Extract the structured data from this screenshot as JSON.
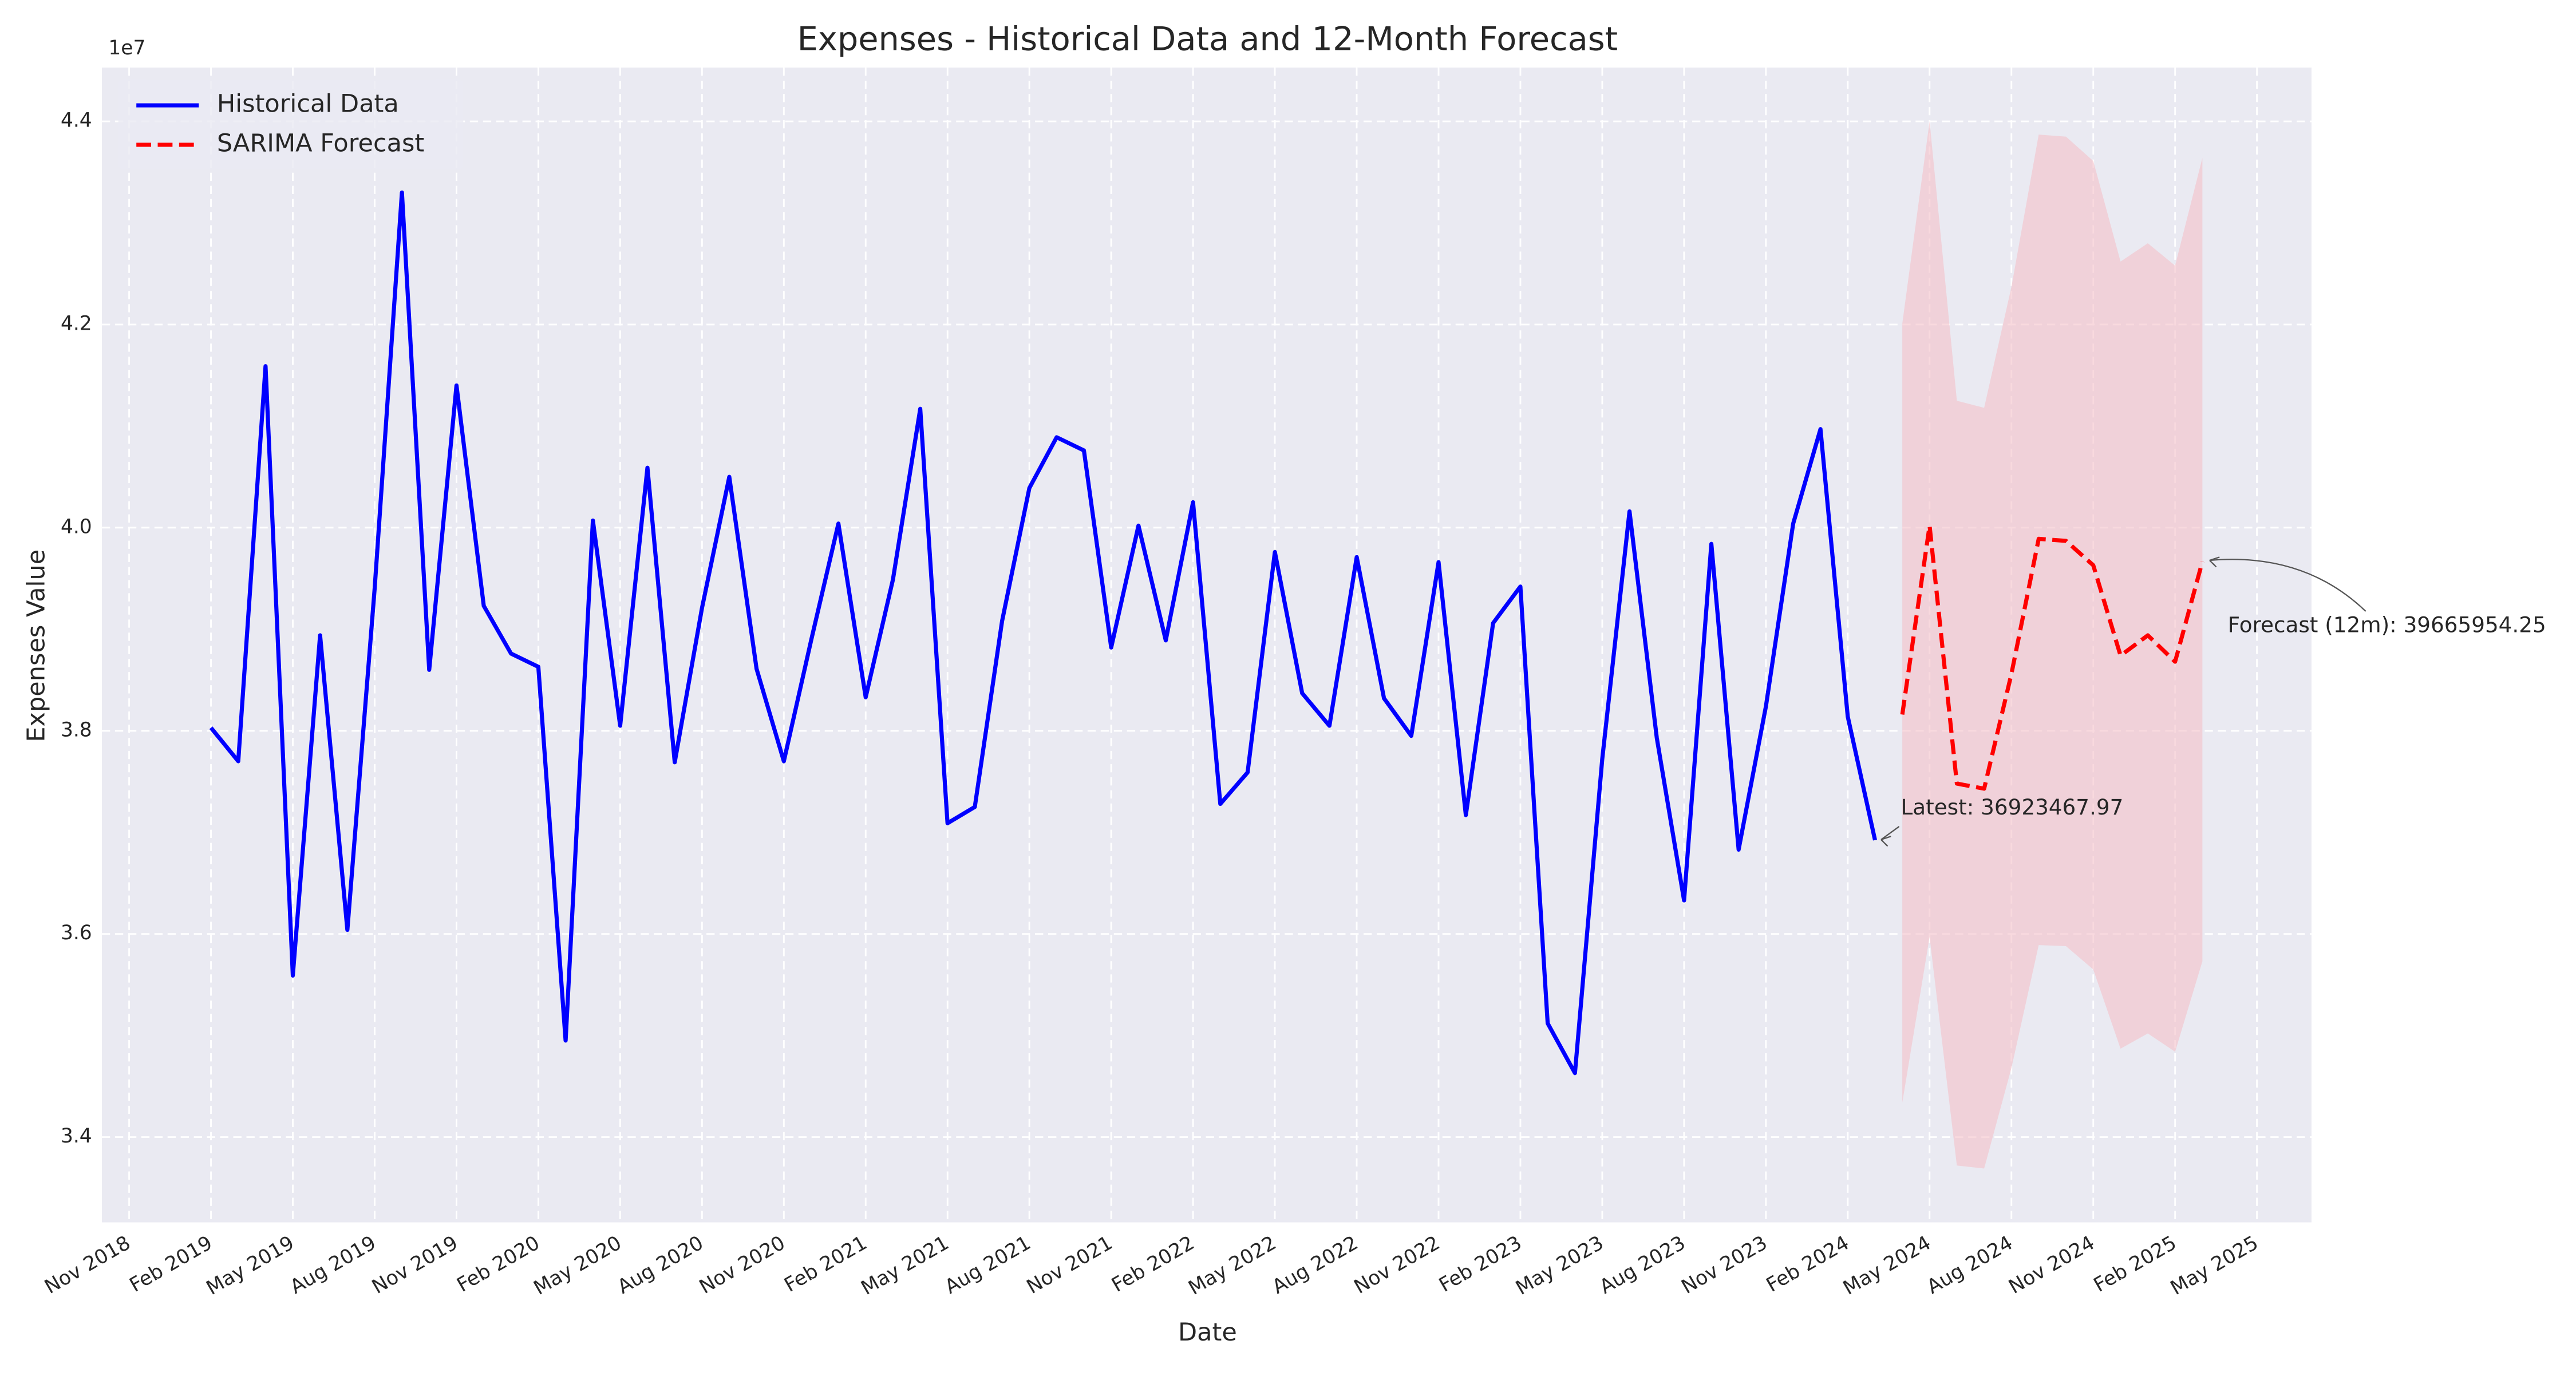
{
  "chart_data": {
    "type": "line",
    "title": "Expenses - Historical Data and 12-Month Forecast",
    "x_label": "Date",
    "y_label": "Expenses Value",
    "y_offset_label": "1e7",
    "grid": true,
    "legend": "upper left",
    "xlim": [
      "2018-10",
      "2025-07"
    ],
    "xticks": [
      {
        "value": "2018-11",
        "label": "Nov 2018"
      },
      {
        "value": "2019-02",
        "label": "Feb 2019"
      },
      {
        "value": "2019-05",
        "label": "May 2019"
      },
      {
        "value": "2019-08",
        "label": "Aug 2019"
      },
      {
        "value": "2019-11",
        "label": "Nov 2019"
      },
      {
        "value": "2020-02",
        "label": "Feb 2020"
      },
      {
        "value": "2020-05",
        "label": "May 2020"
      },
      {
        "value": "2020-08",
        "label": "Aug 2020"
      },
      {
        "value": "2020-11",
        "label": "Nov 2020"
      },
      {
        "value": "2021-02",
        "label": "Feb 2021"
      },
      {
        "value": "2021-05",
        "label": "May 2021"
      },
      {
        "value": "2021-08",
        "label": "Aug 2021"
      },
      {
        "value": "2021-11",
        "label": "Nov 2021"
      },
      {
        "value": "2022-02",
        "label": "Feb 2022"
      },
      {
        "value": "2022-05",
        "label": "May 2022"
      },
      {
        "value": "2022-08",
        "label": "Aug 2022"
      },
      {
        "value": "2022-11",
        "label": "Nov 2022"
      },
      {
        "value": "2023-02",
        "label": "Feb 2023"
      },
      {
        "value": "2023-05",
        "label": "May 2023"
      },
      {
        "value": "2023-08",
        "label": "Aug 2023"
      },
      {
        "value": "2023-11",
        "label": "Nov 2023"
      },
      {
        "value": "2024-02",
        "label": "Feb 2024"
      },
      {
        "value": "2024-05",
        "label": "May 2024"
      },
      {
        "value": "2024-08",
        "label": "Aug 2024"
      },
      {
        "value": "2024-11",
        "label": "Nov 2024"
      },
      {
        "value": "2025-02",
        "label": "Feb 2025"
      },
      {
        "value": "2025-05",
        "label": "May 2025"
      }
    ],
    "ylim": [
      33160000,
      44530000
    ],
    "yticks": [
      {
        "value": 34000000,
        "label": "3.4"
      },
      {
        "value": 36000000,
        "label": "3.6"
      },
      {
        "value": 38000000,
        "label": "3.8"
      },
      {
        "value": 40000000,
        "label": "4.0"
      },
      {
        "value": 42000000,
        "label": "4.2"
      },
      {
        "value": 44000000,
        "label": "4.4"
      }
    ],
    "series": [
      {
        "name": "Historical Data",
        "color": "#0000ff",
        "linestyle": "solid",
        "x": [
          "2019-02",
          "2019-03",
          "2019-04",
          "2019-05",
          "2019-06",
          "2019-07",
          "2019-08",
          "2019-09",
          "2019-10",
          "2019-11",
          "2019-12",
          "2020-01",
          "2020-02",
          "2020-03",
          "2020-04",
          "2020-05",
          "2020-06",
          "2020-07",
          "2020-08",
          "2020-09",
          "2020-10",
          "2020-11",
          "2020-12",
          "2021-01",
          "2021-02",
          "2021-03",
          "2021-04",
          "2021-05",
          "2021-06",
          "2021-07",
          "2021-08",
          "2021-09",
          "2021-10",
          "2021-11",
          "2021-12",
          "2022-01",
          "2022-02",
          "2022-03",
          "2022-04",
          "2022-05",
          "2022-06",
          "2022-07",
          "2022-08",
          "2022-09",
          "2022-10",
          "2022-11",
          "2022-12",
          "2023-01",
          "2023-02",
          "2023-03",
          "2023-04",
          "2023-05",
          "2023-06",
          "2023-07",
          "2023-08",
          "2023-09",
          "2023-10",
          "2023-11",
          "2023-12",
          "2024-01",
          "2024-02",
          "2024-03"
        ],
        "values": [
          38030000,
          37700000,
          41590000,
          35590000,
          38940000,
          36040000,
          39400000,
          43300000,
          38600000,
          41400000,
          39230000,
          38760000,
          38630000,
          34950000,
          40070000,
          38050000,
          40590000,
          37690000,
          39210000,
          40500000,
          38610000,
          37700000,
          38890000,
          40040000,
          38330000,
          39490000,
          41170000,
          37090000,
          37250000,
          39080000,
          40390000,
          40890000,
          40760000,
          38820000,
          40020000,
          38890000,
          40250000,
          37280000,
          37590000,
          39760000,
          38370000,
          38050000,
          39710000,
          38320000,
          37950000,
          39660000,
          37170000,
          39060000,
          39420000,
          35120000,
          34630000,
          37720000,
          40160000,
          37930000,
          36330000,
          39840000,
          36830000,
          38240000,
          40040000,
          40970000,
          38140000,
          36923467.97
        ]
      },
      {
        "name": "SARIMA Forecast",
        "color": "#ff0000",
        "linestyle": "dashed",
        "x": [
          "2024-04",
          "2024-05",
          "2024-06",
          "2024-07",
          "2024-08",
          "2024-09",
          "2024-10",
          "2024-11",
          "2024-12",
          "2025-01",
          "2025-02",
          "2025-03"
        ],
        "values": [
          38160000,
          40020000,
          37480000,
          37430000,
          38560000,
          39890000,
          39870000,
          39630000,
          38740000,
          38940000,
          38680000,
          39665954.25
        ]
      }
    ],
    "interval": {
      "color": "#f4c0c8",
      "x": [
        "2024-04",
        "2024-05",
        "2024-06",
        "2024-07",
        "2024-08",
        "2024-09",
        "2024-10",
        "2024-11",
        "2024-12",
        "2025-01",
        "2025-02",
        "2025-03"
      ],
      "lower": [
        34340000,
        35970000,
        33720000,
        33690000,
        34680000,
        35890000,
        35880000,
        35650000,
        34870000,
        35020000,
        34840000,
        35730000
      ],
      "upper": [
        42010000,
        44000000,
        41250000,
        41180000,
        42370000,
        43870000,
        43850000,
        43610000,
        42620000,
        42800000,
        42580000,
        43640000
      ]
    },
    "annotations": [
      "Latest: 36923467.97",
      "Forecast (12m): 39665954.25"
    ]
  }
}
